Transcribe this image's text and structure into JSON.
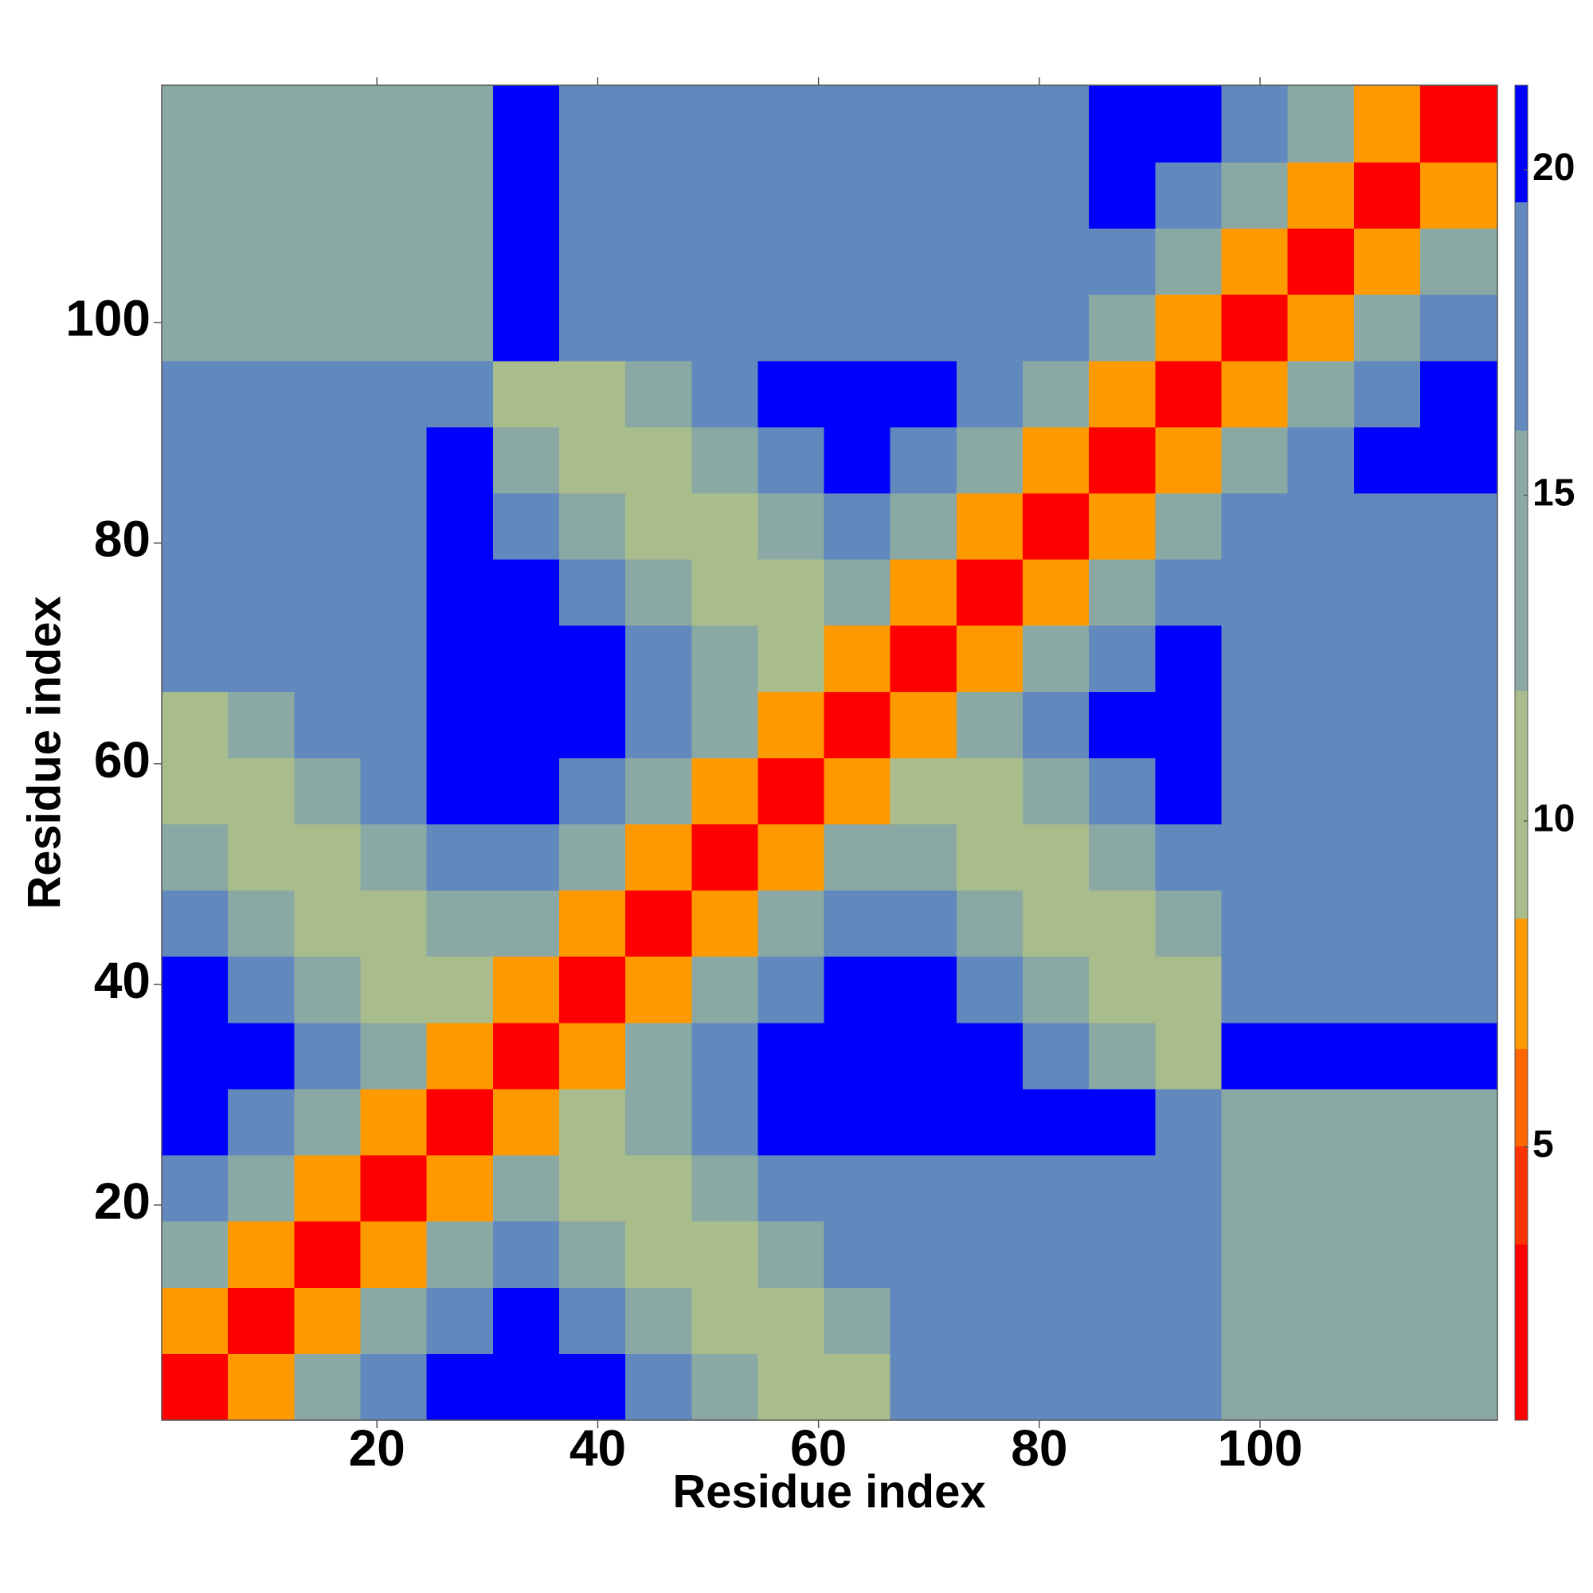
{
  "chart_data": {
    "type": "heatmap",
    "x_label": "Residue index",
    "y_label": "Residue index",
    "xlim": [
      0.5,
      121.5
    ],
    "ylim": [
      0.5,
      121.5
    ],
    "xticks": [
      20,
      40,
      60,
      80,
      100
    ],
    "yticks": [
      20,
      40,
      60,
      80,
      100
    ],
    "x_edges": [
      0.5,
      6.5,
      12.5,
      18.5,
      24.5,
      30.5,
      36.5,
      42.5,
      48.5,
      54.5,
      60.5,
      66.5,
      72.5,
      78.5,
      84.5,
      90.5,
      96.5,
      102.5,
      108.5,
      114.5,
      121.5
    ],
    "y_edges": [
      0.5,
      6.5,
      12.5,
      18.5,
      24.5,
      30.5,
      36.5,
      42.5,
      48.5,
      54.5,
      60.5,
      66.5,
      72.5,
      78.5,
      84.5,
      90.5,
      96.5,
      102.5,
      108.5,
      114.5,
      121.5
    ],
    "z": [
      [
        3,
        8,
        13,
        17,
        21,
        21,
        21,
        18,
        15,
        11,
        11,
        18,
        18,
        18,
        18,
        18,
        14,
        14,
        14,
        14
      ],
      [
        8,
        3,
        8,
        13,
        17,
        21,
        18,
        15,
        11,
        11,
        15,
        18,
        18,
        18,
        18,
        18,
        14,
        14,
        14,
        14
      ],
      [
        13,
        8,
        3,
        8,
        13,
        17,
        15,
        11,
        11,
        15,
        18,
        18,
        18,
        18,
        18,
        18,
        14,
        14,
        14,
        14
      ],
      [
        17,
        13,
        8,
        3,
        8,
        13,
        11,
        11,
        15,
        18,
        18,
        18,
        18,
        18,
        18,
        18,
        14,
        14,
        14,
        14
      ],
      [
        21,
        17,
        13,
        8,
        3,
        8,
        11,
        15,
        18,
        21,
        21,
        21,
        21,
        21,
        21,
        18,
        14,
        14,
        14,
        14
      ],
      [
        21,
        21,
        17,
        13,
        8,
        3,
        8,
        13,
        17,
        21,
        21,
        21,
        21,
        18,
        15,
        11,
        21,
        21,
        21,
        21
      ],
      [
        21,
        18,
        15,
        11,
        11,
        8,
        3,
        8,
        13,
        17,
        21,
        21,
        18,
        15,
        11,
        11,
        18,
        18,
        18,
        18
      ],
      [
        18,
        15,
        11,
        11,
        15,
        13,
        8,
        3,
        8,
        13,
        17,
        18,
        15,
        11,
        11,
        15,
        18,
        18,
        18,
        18
      ],
      [
        15,
        11,
        11,
        15,
        18,
        17,
        13,
        8,
        3,
        8,
        13,
        15,
        11,
        11,
        15,
        18,
        18,
        18,
        18,
        18
      ],
      [
        11,
        11,
        15,
        18,
        21,
        21,
        17,
        13,
        8,
        3,
        8,
        11,
        11,
        15,
        18,
        21,
        18,
        18,
        18,
        18
      ],
      [
        11,
        15,
        18,
        18,
        21,
        21,
        21,
        17,
        13,
        8,
        3,
        8,
        13,
        17,
        21,
        21,
        18,
        18,
        18,
        18
      ],
      [
        18,
        18,
        18,
        18,
        21,
        21,
        21,
        18,
        15,
        11,
        8,
        3,
        8,
        13,
        17,
        21,
        18,
        18,
        18,
        18
      ],
      [
        18,
        18,
        18,
        18,
        21,
        21,
        18,
        15,
        11,
        11,
        13,
        8,
        3,
        8,
        13,
        17,
        18,
        18,
        18,
        18
      ],
      [
        18,
        18,
        18,
        18,
        21,
        18,
        15,
        11,
        11,
        15,
        17,
        13,
        8,
        3,
        8,
        13,
        17,
        18,
        18,
        18
      ],
      [
        18,
        18,
        18,
        18,
        21,
        15,
        11,
        11,
        15,
        18,
        21,
        17,
        13,
        8,
        3,
        8,
        13,
        17,
        21,
        21
      ],
      [
        18,
        18,
        18,
        18,
        18,
        11,
        11,
        15,
        18,
        21,
        21,
        21,
        17,
        13,
        8,
        3,
        8,
        13,
        17,
        21
      ],
      [
        14,
        14,
        14,
        14,
        14,
        21,
        18,
        18,
        18,
        18,
        18,
        18,
        18,
        17,
        13,
        8,
        3,
        8,
        13,
        17
      ],
      [
        14,
        14,
        14,
        14,
        14,
        21,
        18,
        18,
        18,
        18,
        18,
        18,
        18,
        18,
        17,
        13,
        8,
        3,
        8,
        13
      ],
      [
        14,
        14,
        14,
        14,
        14,
        21,
        18,
        18,
        18,
        18,
        18,
        18,
        18,
        18,
        21,
        17,
        13,
        8,
        3,
        8
      ],
      [
        14,
        14,
        14,
        14,
        14,
        21,
        18,
        18,
        18,
        18,
        18,
        18,
        18,
        18,
        21,
        21,
        17,
        13,
        8,
        3
      ]
    ],
    "colormap": [
      {
        "max": 3.5,
        "color": "#ff0000"
      },
      {
        "max": 5,
        "color": "#ff3300"
      },
      {
        "max": 6.5,
        "color": "#ff6600"
      },
      {
        "max": 8.5,
        "color": "#ff9900"
      },
      {
        "max": 12,
        "color": "#a9bd8c"
      },
      {
        "max": 16,
        "color": "#8aa8a4"
      },
      {
        "max": 19.5,
        "color": "#6189bd"
      },
      {
        "color": "#0000ff"
      }
    ],
    "clim": [
      0.8,
      21.3
    ],
    "cticks": [
      5,
      10,
      15,
      20
    ]
  }
}
